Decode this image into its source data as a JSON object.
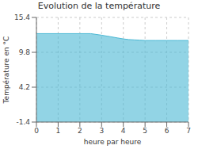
{
  "chart_data": {
    "type": "area",
    "title": "Evolution de la température",
    "x_label": "heure par heure",
    "y_label": "Température en °C",
    "x": [
      0,
      1,
      2,
      2.5,
      3,
      3.25,
      3.5,
      3.75,
      4,
      4.25,
      4.5,
      4.75,
      5,
      5.5,
      6,
      6.5,
      7
    ],
    "values": [
      12.8,
      12.8,
      12.8,
      12.8,
      12.55,
      12.4,
      12.25,
      12.1,
      11.95,
      11.85,
      11.8,
      11.75,
      11.7,
      11.7,
      11.7,
      11.7,
      11.7
    ],
    "xlim": [
      0,
      7
    ],
    "ylim": [
      -1.4,
      15.4
    ],
    "xticks": [
      0,
      1,
      2,
      3,
      4,
      5,
      6,
      7
    ],
    "yticks": [
      -1.4,
      4.2,
      9.8,
      15.4
    ],
    "color": "#4ab8d4",
    "grid": true
  }
}
